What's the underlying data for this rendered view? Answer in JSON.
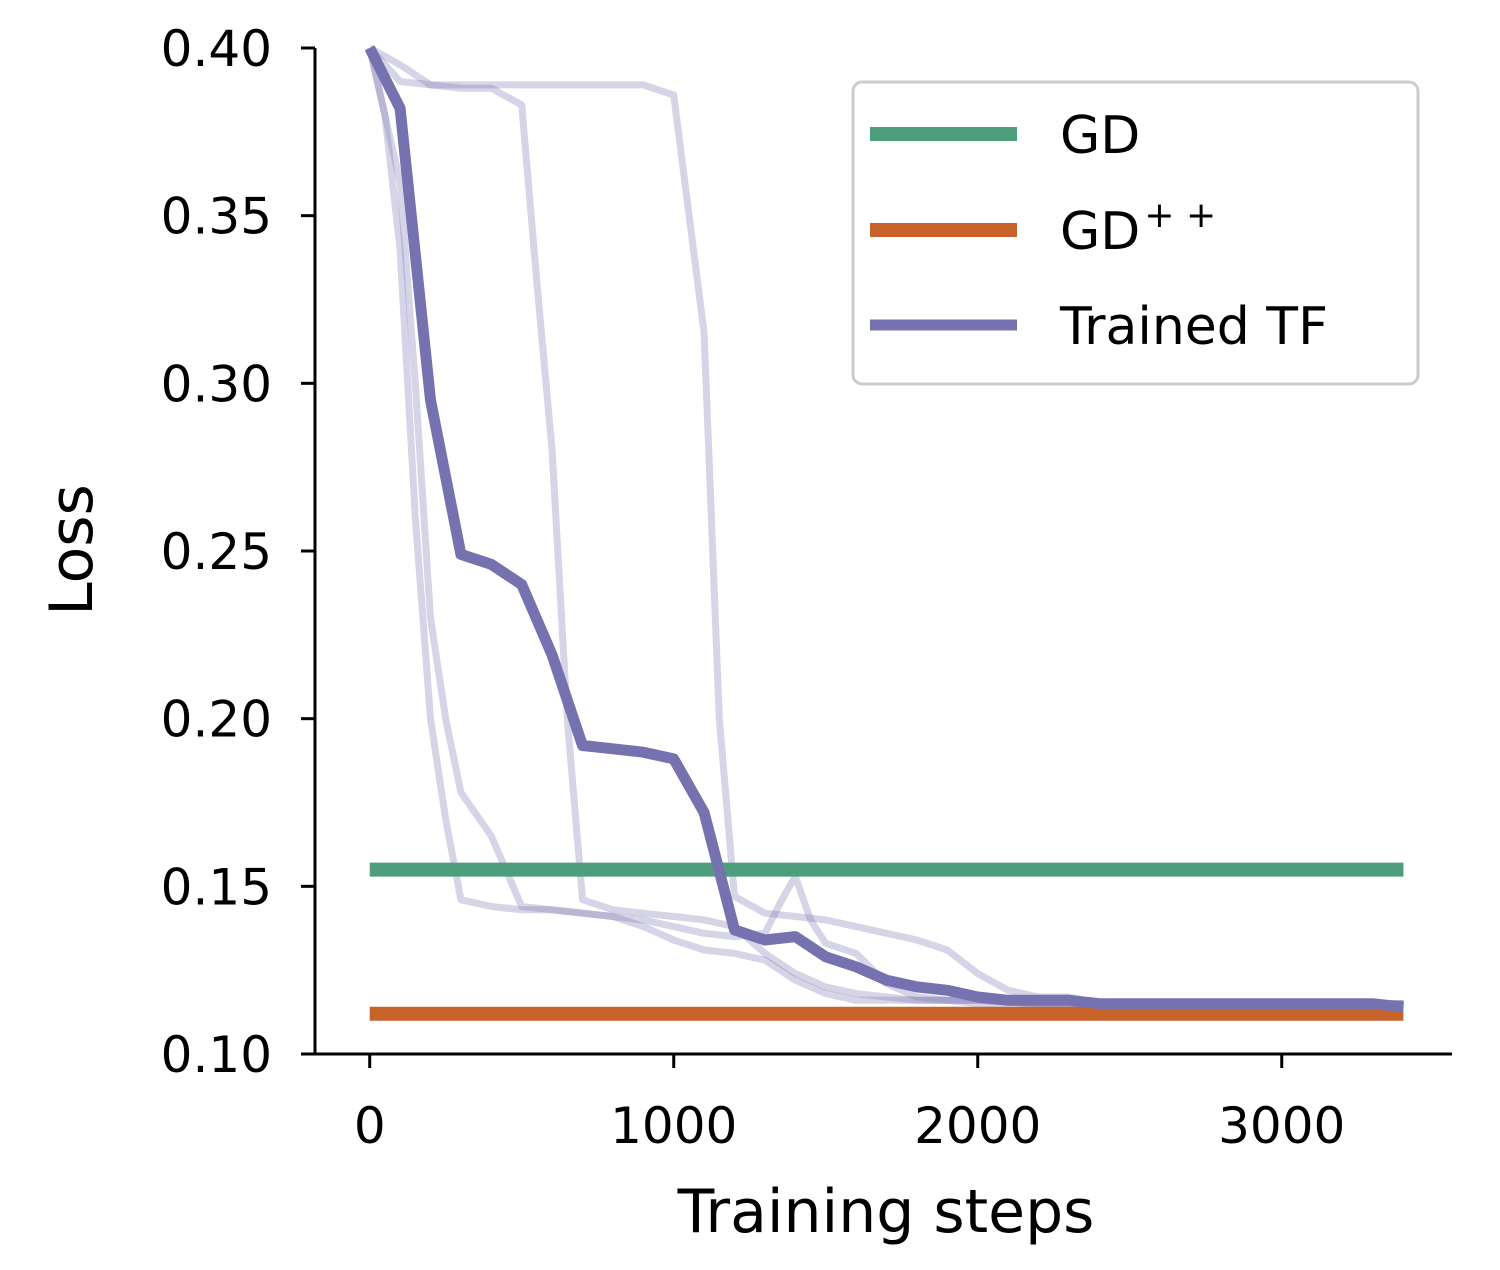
{
  "chart_data": {
    "type": "line",
    "xlabel": "Training steps",
    "ylabel": "Loss",
    "xlim": [
      -180,
      3560
    ],
    "ylim": [
      0.1,
      0.4
    ],
    "xticks": [
      0,
      1000,
      2000,
      3000
    ],
    "xtick_labels": [
      "0",
      "1000",
      "2000",
      "3000"
    ],
    "yticks": [
      0.1,
      0.15,
      0.2,
      0.25,
      0.3,
      0.35,
      0.4
    ],
    "ytick_labels": [
      "0.10",
      "0.15",
      "0.20",
      "0.25",
      "0.30",
      "0.35",
      "0.40"
    ],
    "grid": false,
    "legend_position": "top-right",
    "legend": [
      {
        "label": "GD",
        "sup": "",
        "color": "#4e9e7d"
      },
      {
        "label": "GD",
        "sup": "+ +",
        "color": "#c8642a"
      },
      {
        "label": "Trained TF",
        "sup": "",
        "color": "#7672b0"
      }
    ],
    "series": [
      {
        "name": "GD",
        "color": "#4e9e7d",
        "x": [
          0,
          3400
        ],
        "y": [
          0.155,
          0.155
        ]
      },
      {
        "name": "GD++",
        "color": "#c8642a",
        "x": [
          0,
          3400
        ],
        "y": [
          0.112,
          0.112
        ]
      },
      {
        "name": "Trained TF",
        "color": "#7672b0",
        "x": [
          0,
          100,
          200,
          300,
          400,
          500,
          600,
          700,
          800,
          900,
          1000,
          1100,
          1200,
          1300,
          1400,
          1500,
          1600,
          1700,
          1800,
          1900,
          2000,
          2100,
          2200,
          2300,
          2400,
          2500,
          2600,
          2700,
          2800,
          2900,
          3000,
          3100,
          3200,
          3300,
          3400
        ],
        "y": [
          0.4,
          0.382,
          0.295,
          0.249,
          0.246,
          0.24,
          0.219,
          0.192,
          0.191,
          0.19,
          0.188,
          0.172,
          0.137,
          0.134,
          0.135,
          0.129,
          0.126,
          0.122,
          0.12,
          0.119,
          0.117,
          0.116,
          0.116,
          0.116,
          0.115,
          0.115,
          0.115,
          0.115,
          0.115,
          0.115,
          0.115,
          0.115,
          0.115,
          0.115,
          0.114
        ]
      }
    ],
    "runs": [
      {
        "color": "#7672b0",
        "x": [
          0,
          100,
          200,
          300,
          400,
          500,
          600,
          700,
          800,
          900,
          1000,
          1100,
          1150,
          1200,
          1300,
          1400,
          1500,
          1600,
          1700,
          1800,
          1900,
          2000,
          2100,
          2200,
          2300,
          2400,
          2600,
          2800,
          3000,
          3200,
          3400
        ],
        "y": [
          0.4,
          0.395,
          0.389,
          0.389,
          0.389,
          0.389,
          0.389,
          0.389,
          0.389,
          0.389,
          0.386,
          0.315,
          0.2,
          0.147,
          0.142,
          0.141,
          0.14,
          0.138,
          0.136,
          0.134,
          0.131,
          0.124,
          0.119,
          0.117,
          0.117,
          0.115,
          0.115,
          0.115,
          0.115,
          0.115,
          0.115
        ]
      },
      {
        "color": "#7672b0",
        "x": [
          0,
          100,
          200,
          300,
          400,
          500,
          550,
          600,
          650,
          700,
          800,
          900,
          1000,
          1100,
          1200,
          1300,
          1400,
          1500,
          1600,
          1700,
          1800,
          1900,
          2000,
          2200,
          2400,
          2600,
          2800,
          3000,
          3200,
          3400
        ],
        "y": [
          0.4,
          0.39,
          0.389,
          0.388,
          0.388,
          0.383,
          0.33,
          0.28,
          0.2,
          0.146,
          0.143,
          0.142,
          0.141,
          0.14,
          0.138,
          0.13,
          0.124,
          0.12,
          0.118,
          0.117,
          0.116,
          0.116,
          0.116,
          0.115,
          0.115,
          0.115,
          0.115,
          0.115,
          0.115,
          0.115
        ]
      },
      {
        "color": "#7672b0",
        "x": [
          0,
          50,
          100,
          150,
          200,
          250,
          300,
          400,
          500,
          600,
          700,
          800,
          900,
          1000,
          1100,
          1200,
          1300,
          1400,
          1500,
          1600,
          1800,
          2000,
          2200,
          2400,
          2600,
          2800,
          3000,
          3200,
          3400
        ],
        "y": [
          0.4,
          0.38,
          0.34,
          0.26,
          0.2,
          0.17,
          0.146,
          0.144,
          0.143,
          0.143,
          0.142,
          0.141,
          0.138,
          0.134,
          0.131,
          0.13,
          0.128,
          0.122,
          0.118,
          0.116,
          0.116,
          0.116,
          0.115,
          0.115,
          0.115,
          0.115,
          0.115,
          0.115,
          0.115
        ]
      },
      {
        "color": "#7672b0",
        "x": [
          0,
          100,
          150,
          200,
          250,
          300,
          400,
          500,
          600,
          700,
          800,
          900,
          1000,
          1100,
          1200,
          1300,
          1350,
          1400,
          1450,
          1500,
          1600,
          1700,
          1800,
          2000,
          2200,
          2400,
          2600,
          2800,
          3000,
          3200,
          3400
        ],
        "y": [
          0.4,
          0.36,
          0.3,
          0.23,
          0.2,
          0.178,
          0.165,
          0.144,
          0.143,
          0.142,
          0.141,
          0.14,
          0.138,
          0.136,
          0.135,
          0.136,
          0.145,
          0.153,
          0.14,
          0.133,
          0.13,
          0.121,
          0.117,
          0.115,
          0.115,
          0.115,
          0.115,
          0.115,
          0.115,
          0.115,
          0.115
        ]
      }
    ]
  }
}
